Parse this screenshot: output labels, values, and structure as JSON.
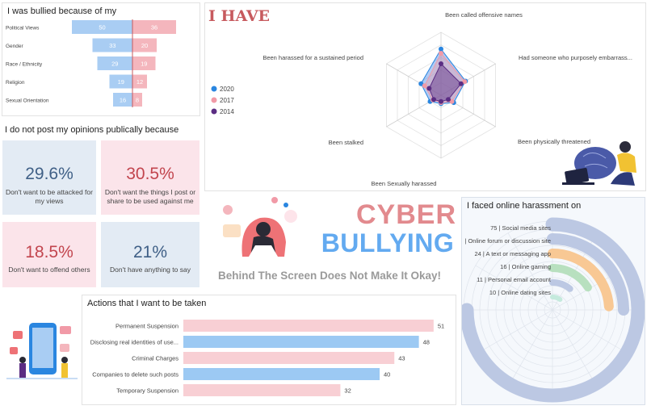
{
  "colors": {
    "blue": "#a9cdf3",
    "pink": "#f4b6bd",
    "bar_blue": "#9cc9f3",
    "bar_pink": "#f8cfd4",
    "radar_2020": "#2a86e0",
    "radar_2017": "#f19aa7",
    "radar_2014": "#5b2d83"
  },
  "bullied": {
    "title": "I was bullied because of my",
    "chart_data": {
      "type": "bar",
      "categories": [
        "Political Views",
        "Gender",
        "Race / Ethnicity",
        "Religion",
        "Sexual Orientation"
      ],
      "series": [
        {
          "values": [
            50,
            33,
            29,
            19,
            16
          ]
        },
        {
          "values": [
            36,
            20,
            19,
            12,
            8
          ]
        }
      ]
    }
  },
  "opinions": {
    "title": "I do not post my opinions publically because",
    "stats": [
      {
        "value": "29.6%",
        "label": "Don't want to be attacked for my views"
      },
      {
        "value": "30.5%",
        "label": "Don't want the things I post or share to be used against me"
      },
      {
        "value": "18.5%",
        "label": "Don't want to offend others"
      },
      {
        "value": "21%",
        "label": "Don't have anything to say"
      }
    ]
  },
  "i_have": {
    "title": "I HAVE",
    "chart_data": {
      "type": "radar",
      "axes": [
        "Been called offensive names",
        "Had someone who purposely embarrass...",
        "Been physically threatened",
        "Been Sexually harassed",
        "Been stalked",
        "Been harassed for a sustained period"
      ],
      "series": [
        {
          "name": "2020",
          "values": [
            44,
            27,
            14,
            8,
            12,
            22
          ]
        },
        {
          "name": "2017",
          "values": [
            40,
            26,
            12,
            7,
            9,
            18
          ]
        },
        {
          "name": "2014",
          "values": [
            30,
            22,
            8,
            6,
            8,
            13
          ]
        }
      ],
      "max": 60,
      "legend_position": "left"
    }
  },
  "headline": {
    "cyber": "CYBER",
    "bullying": "BULLYING",
    "tagline": "Behind The Screen Does Not Make It Okay!"
  },
  "harassment": {
    "title": "I faced online harassment on",
    "chart_data": {
      "type": "radial_bar",
      "categories": [
        "Social media sites",
        "Online forum or discussion site",
        "A text or messaging app",
        "Online gaming",
        "Personal email account",
        "Online dating sites"
      ],
      "values": [
        75,
        25,
        24,
        16,
        11,
        10
      ],
      "labels": [
        "75 | Social media sites",
        "| Online forum or discussion site",
        "24 | A text or messaging app",
        "16 | Online gaming",
        "11 | Personal email account",
        "10 | Online dating sites"
      ]
    }
  },
  "actions": {
    "title": "Actions that I want to be taken",
    "chart_data": {
      "type": "bar",
      "categories": [
        "Permanent Suspension",
        "Disclosing real identities of use...",
        "Criminal Charges",
        "Companies to delete such posts",
        "Temporary Suspension"
      ],
      "values": [
        51,
        48,
        43,
        40,
        32
      ],
      "xlim": [
        0,
        53
      ]
    }
  }
}
